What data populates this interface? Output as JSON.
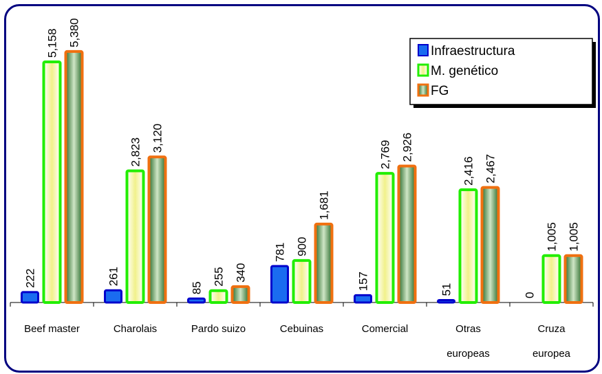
{
  "chart_data": {
    "type": "bar",
    "categories": [
      [
        "Beef master"
      ],
      [
        "Charolais"
      ],
      [
        "Pardo suizo"
      ],
      [
        "Cebuinas"
      ],
      [
        "Comercial"
      ],
      [
        "Otras",
        "europeas"
      ],
      [
        "Cruza",
        "europea"
      ]
    ],
    "series": [
      {
        "name": "Infraestructura",
        "values": [
          222,
          261,
          85,
          781,
          157,
          51,
          0
        ],
        "labels": [
          "222",
          "261",
          "85",
          "781",
          "157",
          "51",
          "0"
        ]
      },
      {
        "name": "M. genético",
        "values": [
          5158,
          2823,
          255,
          900,
          2769,
          2416,
          1005
        ],
        "labels": [
          "5,158",
          "2,823",
          "255",
          "900",
          "2,769",
          "2,416",
          "1,005"
        ]
      },
      {
        "name": "FG",
        "values": [
          5380,
          3120,
          340,
          1681,
          2926,
          2467,
          1005
        ],
        "labels": [
          "5,380",
          "3,120",
          "340",
          "1,681",
          "2,926",
          "2,467",
          "1,005"
        ]
      }
    ],
    "ylim": [
      0,
      6000
    ],
    "grid": false,
    "legend_position": "top-right",
    "colors": {
      "infra_fill": "#1a6cf0",
      "infra_edge": "#0000cc",
      "genetic_edge": "#22ee00",
      "genetic_center": "#f4f4a0",
      "fg_edge": "#f07010",
      "fg_center": "#d8ecd0",
      "fg_dark": "#2e6e2e",
      "frame": "#000080"
    }
  }
}
